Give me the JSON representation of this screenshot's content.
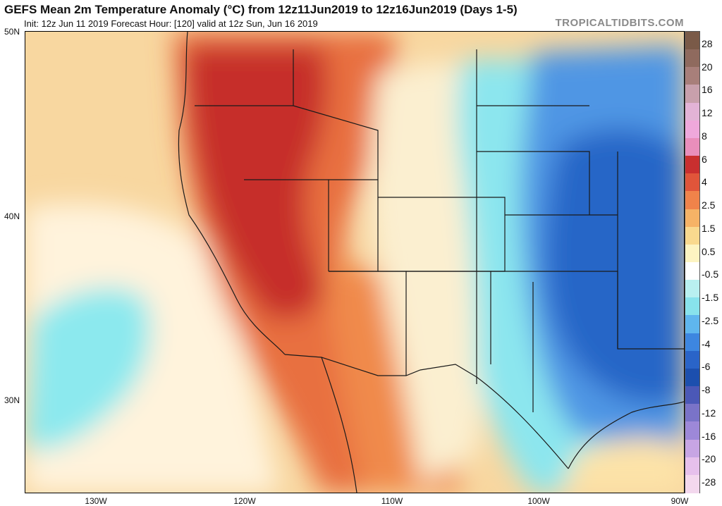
{
  "title": "GEFS Mean 2m Temperature Anomaly (°C) from 12z11Jun2019 to 12z16Jun2019 (Days 1-5)",
  "subtitle": "Init: 12z Jun 11 2019   Forecast Hour: [120]   valid at 12z Sun, Jun 16 2019",
  "brand": "TROPICALTIDBITS.COM",
  "axes": {
    "lat_labels": [
      "50N",
      "40N",
      "30N"
    ],
    "lon_labels": [
      "130W",
      "120W",
      "110W",
      "100W",
      "90W"
    ]
  },
  "colorbar": {
    "labels": [
      "28",
      "20",
      "16",
      "12",
      "8",
      "6",
      "4",
      "2.5",
      "1.5",
      "0.5",
      "-0.5",
      "-1.5",
      "-2.5",
      "-4",
      "-6",
      "-8",
      "-12",
      "-16",
      "-20",
      "-28"
    ],
    "colors": [
      "#7a5a48",
      "#8f6a5e",
      "#a87f7a",
      "#c8a0ac",
      "#e3b3d6",
      "#efa8db",
      "#e98ebb",
      "#c92f2f",
      "#e0553a",
      "#f0834a",
      "#f6b366",
      "#f9d98e",
      "#fdf4c2",
      "#ffffff",
      "#b9f0f0",
      "#88e3ec",
      "#5fb6ee",
      "#3d86e0",
      "#2a64c8",
      "#1c4fae",
      "#4b58b7",
      "#7a73c8",
      "#9d88d8",
      "#c7a5e4",
      "#e6c0ec",
      "#f3d8ee"
    ]
  }
}
